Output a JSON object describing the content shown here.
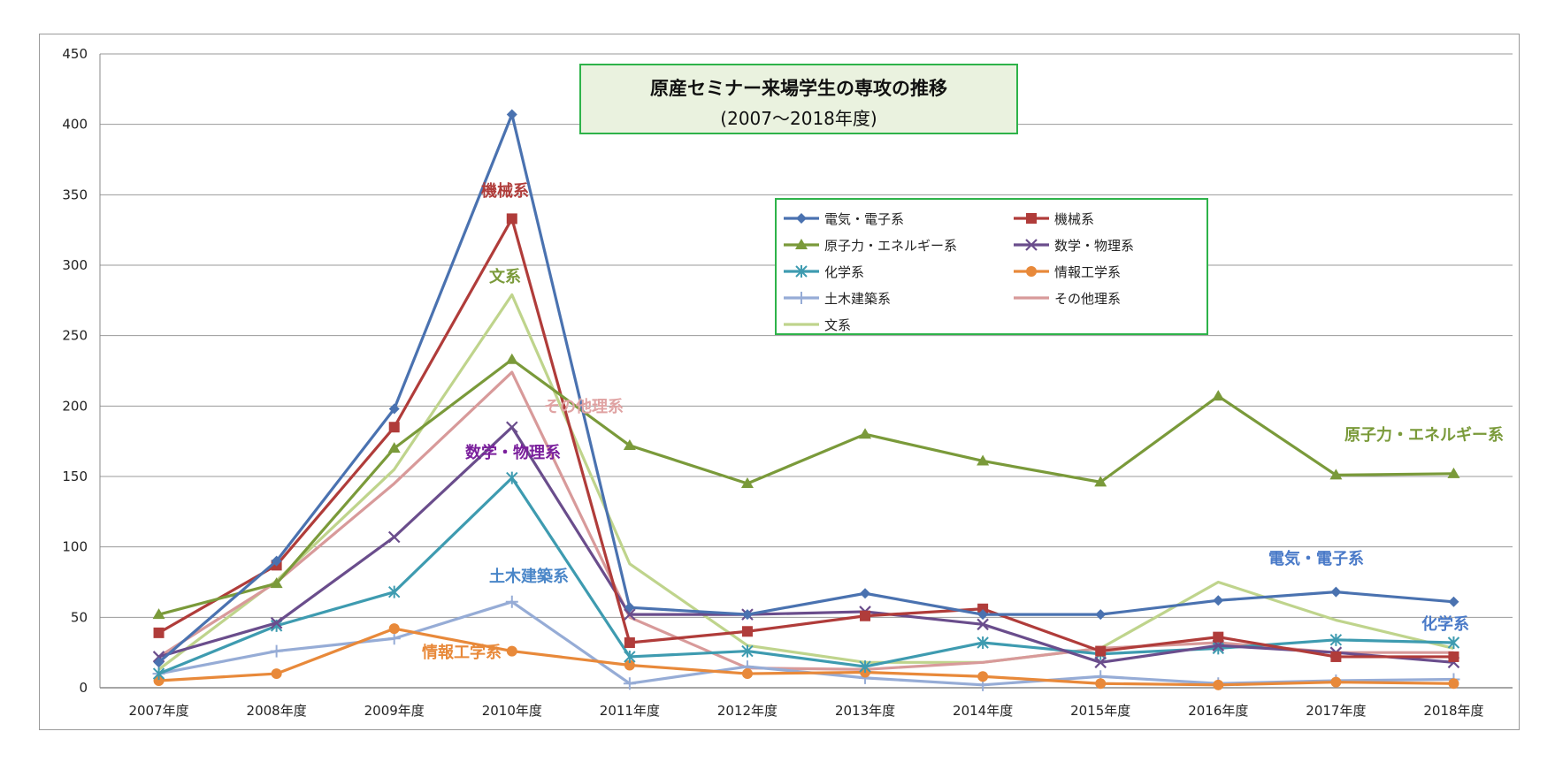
{
  "chart_data": {
    "type": "line",
    "title": "原産セミナー来場学生の専攻の推移",
    "subtitle": "(2007～2018年度)",
    "categories": [
      "2007年度",
      "2008年度",
      "2009年度",
      "2010年度",
      "2011年度",
      "2012年度",
      "2013年度",
      "2014年度",
      "2015年度",
      "2016年度",
      "2017年度",
      "2018年度"
    ],
    "ylim": [
      0,
      450
    ],
    "yticks": [
      0,
      50,
      100,
      150,
      200,
      250,
      300,
      350,
      400,
      450
    ],
    "grid": true,
    "legend_position": "top-center",
    "series": [
      {
        "name": "電気・電子系",
        "color": "#4a72b0",
        "marker": "diamond",
        "values": [
          18,
          90,
          198,
          407,
          57,
          52,
          67,
          52,
          52,
          62,
          68,
          61
        ]
      },
      {
        "name": "機械系",
        "color": "#b03c3a",
        "marker": "square",
        "values": [
          39,
          87,
          185,
          333,
          32,
          40,
          51,
          56,
          26,
          36,
          22,
          22
        ]
      },
      {
        "name": "原子力・エネルギー系",
        "color": "#7a9a3a",
        "marker": "triangle",
        "values": [
          52,
          74,
          170,
          233,
          172,
          145,
          180,
          161,
          146,
          207,
          151,
          152
        ]
      },
      {
        "name": "数学・物理系",
        "color": "#6a4d8c",
        "marker": "x",
        "values": [
          22,
          46,
          107,
          185,
          52,
          52,
          54,
          45,
          18,
          30,
          25,
          18
        ]
      },
      {
        "name": "化学系",
        "color": "#3e9bb0",
        "marker": "asterisk",
        "values": [
          10,
          44,
          68,
          149,
          22,
          26,
          15,
          32,
          24,
          28,
          34,
          32
        ]
      },
      {
        "name": "情報工学系",
        "color": "#e8893a",
        "marker": "circle",
        "values": [
          5,
          10,
          42,
          26,
          16,
          10,
          11,
          8,
          3,
          2,
          4,
          3
        ]
      },
      {
        "name": "土木建築系",
        "color": "#96acd6",
        "marker": "plus",
        "values": [
          10,
          26,
          35,
          61,
          3,
          15,
          7,
          2,
          8,
          3,
          5,
          6
        ]
      },
      {
        "name": "その他理系",
        "color": "#d89a9a",
        "marker": "none",
        "values": [
          22,
          75,
          145,
          224,
          50,
          14,
          13,
          18,
          28,
          32,
          25,
          25
        ]
      },
      {
        "name": "文系",
        "color": "#bfd48c",
        "marker": "none",
        "values": [
          13,
          76,
          155,
          279,
          88,
          30,
          18,
          18,
          28,
          75,
          48,
          28
        ]
      }
    ],
    "annotations": [
      {
        "text": "機械系",
        "color": "#b03c3a"
      },
      {
        "text": "文系",
        "color": "#7a9a3a"
      },
      {
        "text": "その他理系",
        "color": "#e0a3a3"
      },
      {
        "text": "数学・物理系",
        "color": "#7a1f9c"
      },
      {
        "text": "土木建築系",
        "color": "#4a86c8"
      },
      {
        "text": "情報工学系",
        "color": "#e8893a"
      },
      {
        "text": "原子力・エネルギー系",
        "color": "#7a9a3a"
      },
      {
        "text": "電気・電子系",
        "color": "#4a7ac8"
      },
      {
        "text": "化学系",
        "color": "#4a7ac8"
      }
    ]
  }
}
